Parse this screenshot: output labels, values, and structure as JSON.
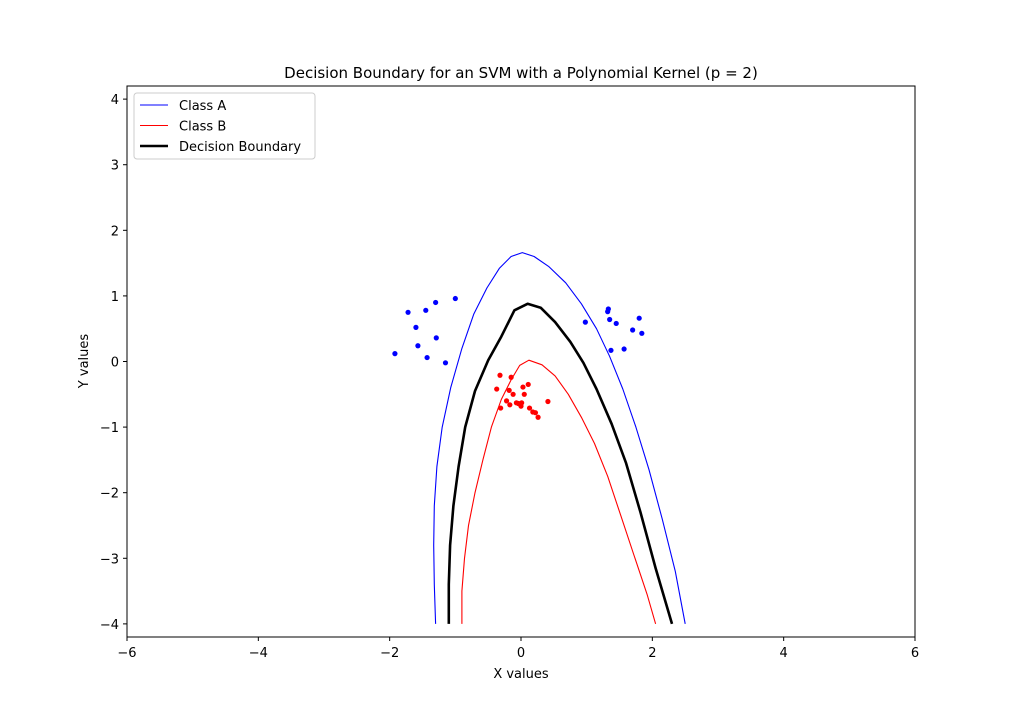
{
  "chart_data": {
    "type": "line",
    "title": "Decision Boundary for an SVM with a Polynomial Kernel (p = 2)",
    "xlabel": "X values",
    "ylabel": "Y values",
    "xlim": [
      -6,
      6
    ],
    "ylim": [
      -4.2,
      4.2
    ],
    "x_ticks": [
      -6,
      -4,
      -2,
      0,
      2,
      4,
      6
    ],
    "y_ticks": [
      -4,
      -3,
      -2,
      -1,
      0,
      1,
      2,
      3,
      4
    ],
    "grid": false,
    "legend": {
      "placement": "top-left",
      "entries": [
        {
          "label": "Class A",
          "color": "#0000ff",
          "style": "thin-line"
        },
        {
          "label": "Class B",
          "color": "#ff0000",
          "style": "thin-line"
        },
        {
          "label": "Decision Boundary",
          "color": "#000000",
          "style": "thick-line"
        }
      ]
    },
    "series": [
      {
        "name": "Class A",
        "color": "#0000ff",
        "kind": "line",
        "x": [
          -1.3,
          -1.32,
          -1.33,
          -1.32,
          -1.28,
          -1.2,
          -1.07,
          -0.9,
          -0.72,
          -0.52,
          -0.33,
          -0.15,
          0.02,
          0.2,
          0.42,
          0.68,
          0.92,
          1.15,
          1.35,
          1.55,
          1.75,
          1.95,
          2.15,
          2.35,
          2.5
        ],
        "y": [
          -4.0,
          -3.4,
          -2.8,
          -2.2,
          -1.6,
          -1.0,
          -0.4,
          0.2,
          0.72,
          1.12,
          1.42,
          1.6,
          1.66,
          1.6,
          1.45,
          1.2,
          0.88,
          0.5,
          0.08,
          -0.42,
          -1.0,
          -1.65,
          -2.4,
          -3.2,
          -4.0
        ]
      },
      {
        "name": "Class B",
        "color": "#ff0000",
        "kind": "line",
        "x": [
          -0.9,
          -0.9,
          -0.86,
          -0.8,
          -0.7,
          -0.58,
          -0.45,
          -0.3,
          -0.15,
          -0.02,
          0.12,
          0.32,
          0.52,
          0.72,
          0.92,
          1.12,
          1.32,
          1.52,
          1.72,
          1.92,
          2.05
        ],
        "y": [
          -4.0,
          -3.5,
          -3.0,
          -2.5,
          -2.0,
          -1.5,
          -1.0,
          -0.58,
          -0.28,
          -0.06,
          0.02,
          -0.05,
          -0.22,
          -0.5,
          -0.85,
          -1.25,
          -1.75,
          -2.35,
          -2.95,
          -3.55,
          -4.0
        ]
      },
      {
        "name": "Decision Boundary",
        "color": "#000000",
        "kind": "thick-line",
        "x": [
          -1.1,
          -1.1,
          -1.08,
          -1.03,
          -0.95,
          -0.85,
          -0.7,
          -0.5,
          -0.3,
          -0.1,
          0.1,
          0.3,
          0.52,
          0.75,
          0.95,
          1.15,
          1.38,
          1.6,
          1.82,
          2.05,
          2.3
        ],
        "y": [
          -4.0,
          -3.4,
          -2.8,
          -2.2,
          -1.6,
          -1.0,
          -0.45,
          0.02,
          0.38,
          0.78,
          0.88,
          0.82,
          0.6,
          0.3,
          -0.02,
          -0.42,
          -0.95,
          -1.55,
          -2.3,
          -3.15,
          -4.0
        ]
      },
      {
        "name": "Class A points",
        "color": "#0000ff",
        "kind": "scatter",
        "x": [
          -1.92,
          -1.72,
          -1.6,
          -1.57,
          -1.45,
          -1.43,
          -1.3,
          -1.29,
          -1.15,
          -1.0,
          0.98,
          1.32,
          1.33,
          1.35,
          1.37,
          1.45,
          1.57,
          1.7,
          1.8,
          1.84
        ],
        "y": [
          0.12,
          0.75,
          0.52,
          0.24,
          0.78,
          0.06,
          0.9,
          0.36,
          -0.02,
          0.96,
          0.6,
          0.76,
          0.8,
          0.64,
          0.17,
          0.58,
          0.19,
          0.48,
          0.66,
          0.43
        ]
      },
      {
        "name": "Class B points",
        "color": "#ff0000",
        "kind": "scatter",
        "x": [
          -0.37,
          -0.32,
          -0.31,
          -0.22,
          -0.18,
          -0.17,
          -0.15,
          -0.12,
          -0.07,
          -0.04,
          0.0,
          0.01,
          0.03,
          0.05,
          0.11,
          0.13,
          0.18,
          0.22,
          0.26,
          0.41
        ],
        "y": [
          -0.42,
          -0.21,
          -0.71,
          -0.6,
          -0.44,
          -0.66,
          -0.24,
          -0.5,
          -0.63,
          -0.64,
          -0.68,
          -0.63,
          -0.39,
          -0.5,
          -0.35,
          -0.71,
          -0.77,
          -0.78,
          -0.85,
          -0.61
        ]
      }
    ]
  }
}
